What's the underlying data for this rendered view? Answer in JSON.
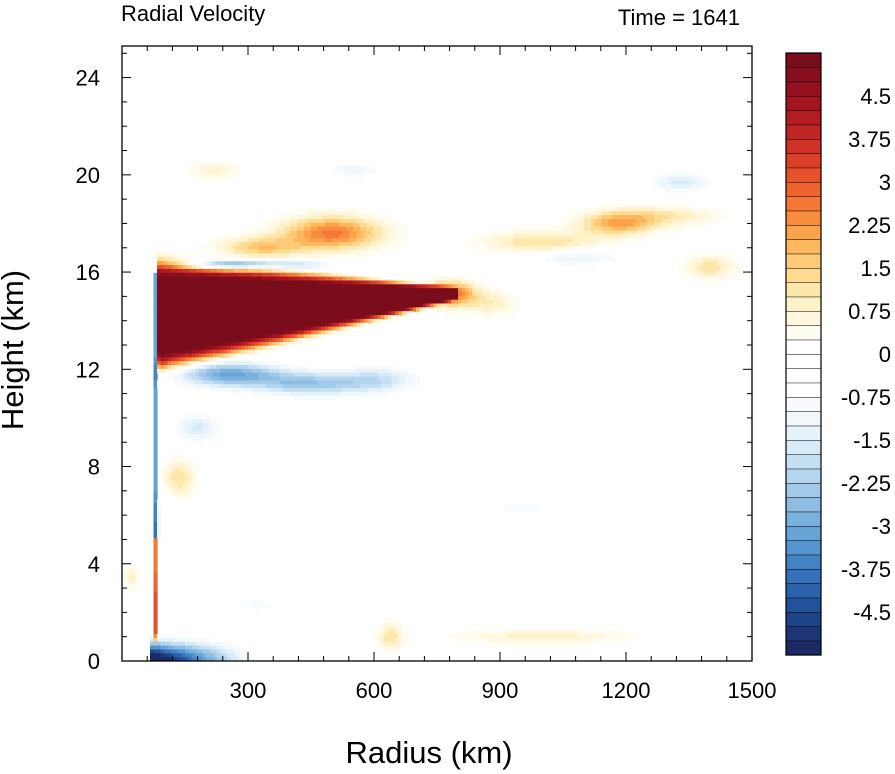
{
  "chart_data": {
    "type": "heatmap",
    "title": "Radial Velocity",
    "title_right": "Time = 1641",
    "xlabel": "Radius (km)",
    "ylabel": "Height (km)",
    "xlim": [
      0,
      1500
    ],
    "ylim": [
      0,
      25.3
    ],
    "x_ticks": [
      300,
      600,
      900,
      1200,
      1500
    ],
    "y_ticks": [
      0,
      4,
      8,
      12,
      16,
      20,
      24
    ],
    "grid": false,
    "colorbar": {
      "levels": [
        -5.25,
        -5,
        -4.75,
        -4.5,
        -4.25,
        -4,
        -3.75,
        -3.5,
        -3.25,
        -3,
        -2.75,
        -2.5,
        -2.25,
        -2,
        -1.75,
        -1.5,
        -1.25,
        -1,
        -0.75,
        -0.5,
        -0.25,
        0,
        0.25,
        0.5,
        0.75,
        1,
        1.25,
        1.5,
        1.75,
        2,
        2.25,
        2.5,
        2.75,
        3,
        3.25,
        3.5,
        3.75,
        4,
        4.25,
        4.5,
        4.75,
        5,
        5.25
      ],
      "labels": [
        "4.5",
        "3.75",
        "3",
        "2.25",
        "1.5",
        "0.75",
        "0",
        "-0.75",
        "-1.5",
        "-2.25",
        "-3",
        "-3.75",
        "-4.5"
      ],
      "label_values": [
        4.5,
        3.75,
        3,
        2.25,
        1.5,
        0.75,
        0,
        -0.75,
        -1.5,
        -2.25,
        -3,
        -3.75,
        -4.5
      ],
      "colors": [
        "#1b2a63",
        "#1d3577",
        "#1f4388",
        "#22529a",
        "#2a62ab",
        "#3572b9",
        "#4483c3",
        "#5594cc",
        "#67a3d4",
        "#7ab1dc",
        "#8ebde3",
        "#a1c9e9",
        "#b4d5ee",
        "#c6e0f3",
        "#d7eaf7",
        "#e6f2fa",
        "#f1f8fc",
        "#f8fbfe",
        "#ffffff",
        "#ffffff",
        "#ffffff",
        "#ffffff",
        "#fffdf2",
        "#fff8df",
        "#fff1c8",
        "#fee7ac",
        "#fedb91",
        "#fdcb77",
        "#fcb75f",
        "#fba24d",
        "#f88d40",
        "#f47836",
        "#ee642f",
        "#e5522b",
        "#db4128",
        "#cf3226",
        "#c12624",
        "#b31c22",
        "#a41520",
        "#95111f",
        "#870f1d",
        "#7a0d1b"
      ]
    },
    "features": [
      {
        "desc": "strong outflow",
        "r_range": [
          80,
          790
        ],
        "z_range": [
          12.2,
          16.2
        ],
        "max_value": 5.25
      },
      {
        "desc": "outflow band",
        "r_range": [
          380,
          600
        ],
        "z_range": [
          16.8,
          18.5
        ],
        "max_value": 2.6
      },
      {
        "desc": "outflow band",
        "r_range": [
          900,
          1250
        ],
        "z_range": [
          16.6,
          18.5
        ],
        "max_value": 2.0
      },
      {
        "desc": "inflow layer",
        "r_range": [
          80,
          750
        ],
        "z_range": [
          10.8,
          12.8
        ],
        "min_value": -2.8
      },
      {
        "desc": "inflow near surface",
        "r_range": [
          80,
          300
        ],
        "z_range": [
          0,
          0.9
        ],
        "min_value": -5.25
      },
      {
        "desc": "inflow above outflow",
        "r_range": [
          150,
          500
        ],
        "z_range": [
          16.0,
          16.6
        ],
        "min_value": -3.5
      }
    ]
  }
}
